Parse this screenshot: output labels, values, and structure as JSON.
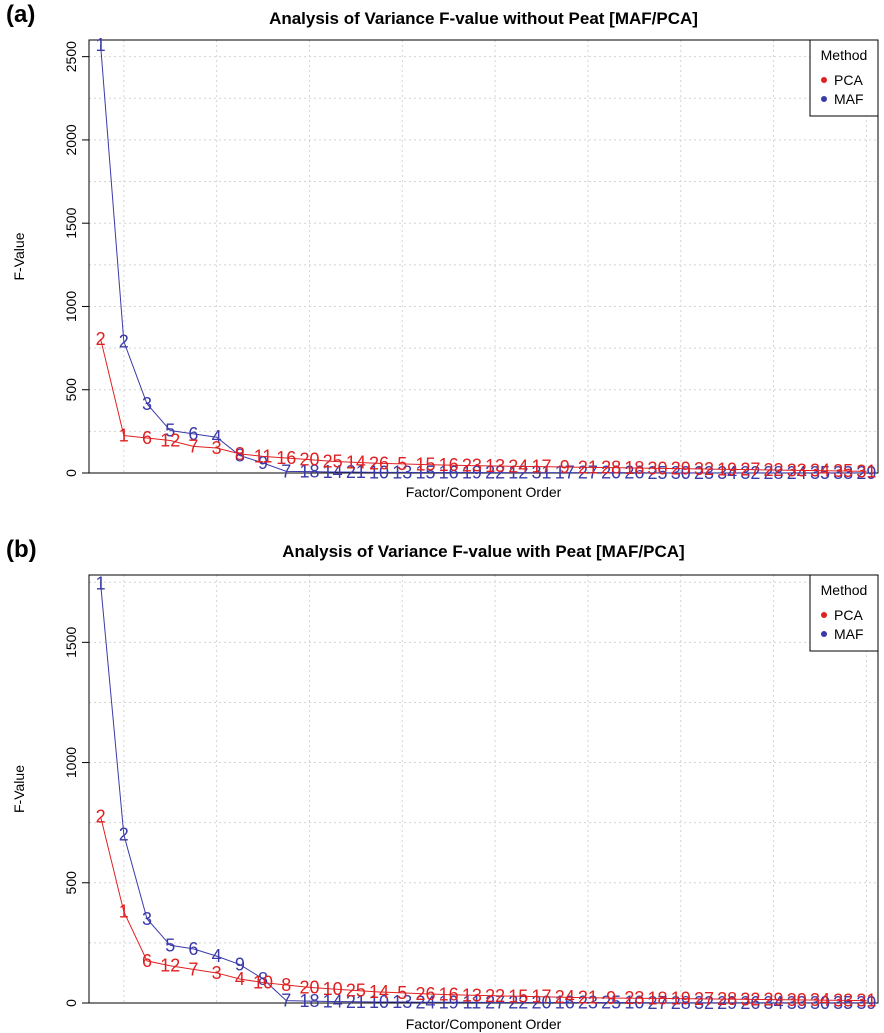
{
  "chart_data": [
    {
      "panel": "(a)",
      "type": "line",
      "title": "Analysis of Variance F-value without Peat [MAF/PCA]",
      "xlabel": "Factor/Component Order",
      "ylabel": "F-Value",
      "ylim": [
        0,
        2600
      ],
      "yticks": [
        0,
        500,
        1000,
        1500,
        2000,
        2500
      ],
      "xlim": [
        0.5,
        34.5
      ],
      "grid": true,
      "legend": {
        "title": "Method",
        "position": "top-right",
        "entries": [
          {
            "name": "PCA",
            "color": "#e02020"
          },
          {
            "name": "MAF",
            "color": "#3a3aaa"
          }
        ]
      },
      "series": [
        {
          "name": "PCA",
          "color": "#e02020",
          "labels": [
            "2",
            "1",
            "6",
            "12",
            "7",
            "3",
            "8",
            "11",
            "16",
            "20",
            "25",
            "14",
            "26",
            "5",
            "15",
            "16",
            "23",
            "13",
            "24",
            "17",
            "9",
            "21",
            "28",
            "18",
            "30",
            "29",
            "32",
            "19",
            "27",
            "22",
            "33",
            "34",
            "35",
            "31"
          ],
          "values": [
            805,
            225,
            210,
            195,
            160,
            150,
            115,
            100,
            90,
            80,
            70,
            64,
            58,
            55,
            50,
            47,
            44,
            42,
            40,
            38,
            36,
            34,
            32,
            30,
            28,
            26,
            24,
            22,
            20,
            18,
            16,
            14,
            12,
            10
          ]
        },
        {
          "name": "MAF",
          "color": "#3a3aaa",
          "labels": [
            "1",
            "2",
            "3",
            "5",
            "6",
            "4",
            "8",
            "9",
            "7",
            "18",
            "14",
            "21",
            "10",
            "13",
            "15",
            "16",
            "19",
            "22",
            "12",
            "31",
            "17",
            "27",
            "20",
            "26",
            "25",
            "30",
            "23",
            "34",
            "32",
            "28",
            "24",
            "35",
            "33",
            "29"
          ],
          "values": [
            2570,
            790,
            415,
            255,
            235,
            215,
            105,
            60,
            10,
            8,
            6,
            5,
            4,
            4,
            3,
            3,
            3,
            2,
            2,
            2,
            2,
            2,
            2,
            2,
            1,
            1,
            1,
            1,
            1,
            1,
            1,
            1,
            1,
            1
          ]
        }
      ]
    },
    {
      "panel": "(b)",
      "type": "line",
      "title": "Analysis of Variance F-value with Peat [MAF/PCA]",
      "xlabel": "Factor/Component Order",
      "ylabel": "F-Value",
      "ylim": [
        0,
        1780
      ],
      "yticks": [
        0,
        500,
        1000,
        1500
      ],
      "xlim": [
        0.5,
        34.5
      ],
      "grid": true,
      "legend": {
        "title": "Method",
        "position": "top-right",
        "entries": [
          {
            "name": "PCA",
            "color": "#e02020"
          },
          {
            "name": "MAF",
            "color": "#3a3aaa"
          }
        ]
      },
      "series": [
        {
          "name": "PCA",
          "color": "#e02020",
          "labels": [
            "2",
            "1",
            "6",
            "12",
            "7",
            "3",
            "4",
            "10",
            "8",
            "20",
            "10",
            "25",
            "14",
            "5",
            "26",
            "16",
            "13",
            "22",
            "15",
            "17",
            "24",
            "21",
            "9",
            "23",
            "18",
            "19",
            "27",
            "28",
            "32",
            "29",
            "30",
            "34",
            "33",
            "31"
          ],
          "values": [
            775,
            380,
            175,
            155,
            140,
            125,
            100,
            85,
            75,
            65,
            58,
            52,
            46,
            42,
            38,
            35,
            32,
            30,
            28,
            26,
            24,
            22,
            21,
            20,
            19,
            18,
            17,
            16,
            15,
            14,
            13,
            12,
            11,
            10
          ]
        },
        {
          "name": "MAF",
          "color": "#3a3aaa",
          "labels": [
            "1",
            "2",
            "3",
            "5",
            "6",
            "4",
            "9",
            "8",
            "7",
            "18",
            "14",
            "21",
            "10",
            "13",
            "24",
            "19",
            "11",
            "27",
            "22",
            "20",
            "16",
            "23",
            "25",
            "10",
            "27",
            "28",
            "32",
            "29",
            "26",
            "34",
            "33",
            "30",
            "35",
            "39"
          ],
          "values": [
            1745,
            700,
            350,
            240,
            225,
            195,
            160,
            100,
            10,
            8,
            6,
            5,
            4,
            4,
            3,
            3,
            3,
            2,
            2,
            2,
            2,
            2,
            2,
            2,
            1,
            1,
            1,
            1,
            1,
            1,
            1,
            1,
            1,
            1
          ]
        }
      ]
    }
  ]
}
